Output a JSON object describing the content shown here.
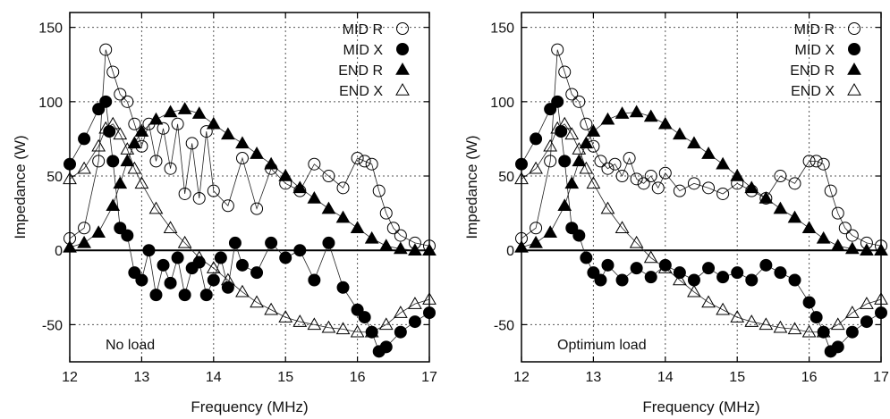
{
  "chart_data": [
    {
      "type": "scatter",
      "annotation": "No load",
      "xlabel": "Frequency (MHz)",
      "ylabel": "Impedance (W)",
      "xlim": [
        12,
        17
      ],
      "ylim": [
        -75,
        160
      ],
      "xticks": [
        12,
        13,
        14,
        15,
        16,
        17
      ],
      "yticks": [
        -50,
        0,
        50,
        100,
        150
      ],
      "grid": "dotted",
      "legend_position": "top-right",
      "series": [
        {
          "name": "MID R",
          "marker": "open-circle",
          "x": [
            12.0,
            12.2,
            12.4,
            12.5,
            12.6,
            12.7,
            12.8,
            12.9,
            13.0,
            13.1,
            13.2,
            13.3,
            13.4,
            13.5,
            13.6,
            13.7,
            13.8,
            13.9,
            14.0,
            14.2,
            14.4,
            14.6,
            14.8,
            15.0,
            15.2,
            15.4,
            15.6,
            15.8,
            16.0,
            16.1,
            16.2,
            16.3,
            16.4,
            16.5,
            16.6,
            16.8,
            17.0
          ],
          "y": [
            8,
            15,
            60,
            135,
            120,
            105,
            100,
            85,
            70,
            85,
            60,
            82,
            55,
            85,
            38,
            72,
            35,
            80,
            40,
            30,
            62,
            28,
            55,
            45,
            40,
            58,
            50,
            42,
            62,
            60,
            58,
            40,
            25,
            15,
            10,
            5,
            3
          ]
        },
        {
          "name": "MID X",
          "marker": "filled-circle",
          "x": [
            12.0,
            12.2,
            12.4,
            12.5,
            12.55,
            12.6,
            12.7,
            12.8,
            12.9,
            13.0,
            13.1,
            13.2,
            13.3,
            13.4,
            13.5,
            13.6,
            13.7,
            13.8,
            13.9,
            14.0,
            14.1,
            14.2,
            14.3,
            14.4,
            14.6,
            14.8,
            15.0,
            15.2,
            15.4,
            15.6,
            15.8,
            16.0,
            16.1,
            16.2,
            16.3,
            16.4,
            16.6,
            16.8,
            17.0
          ],
          "y": [
            58,
            75,
            95,
            100,
            80,
            60,
            15,
            10,
            -15,
            -20,
            0,
            -30,
            -10,
            -22,
            -5,
            -30,
            -12,
            -8,
            -30,
            -20,
            -5,
            -25,
            5,
            -10,
            -15,
            5,
            -5,
            0,
            -20,
            5,
            -25,
            -40,
            -45,
            -55,
            -68,
            -65,
            -55,
            -48,
            -42
          ]
        },
        {
          "name": "END R",
          "marker": "filled-triangle",
          "x": [
            12.0,
            12.2,
            12.4,
            12.6,
            12.7,
            12.8,
            12.9,
            13.0,
            13.2,
            13.4,
            13.6,
            13.8,
            14.0,
            14.2,
            14.4,
            14.6,
            14.8,
            15.0,
            15.2,
            15.4,
            15.6,
            15.8,
            16.0,
            16.2,
            16.4,
            16.6,
            16.8,
            17.0
          ],
          "y": [
            2,
            5,
            12,
            30,
            45,
            60,
            72,
            80,
            88,
            93,
            95,
            92,
            85,
            78,
            72,
            65,
            58,
            50,
            42,
            35,
            28,
            22,
            15,
            8,
            3,
            1,
            0,
            0
          ]
        },
        {
          "name": "END X",
          "marker": "open-triangle",
          "x": [
            12.0,
            12.2,
            12.4,
            12.5,
            12.6,
            12.7,
            12.8,
            12.9,
            13.0,
            13.2,
            13.4,
            13.6,
            13.8,
            14.0,
            14.2,
            14.4,
            14.6,
            14.8,
            15.0,
            15.2,
            15.4,
            15.6,
            15.8,
            16.0,
            16.2,
            16.4,
            16.6,
            16.8,
            17.0
          ],
          "y": [
            48,
            55,
            70,
            82,
            85,
            78,
            68,
            55,
            45,
            28,
            15,
            5,
            -5,
            -12,
            -20,
            -28,
            -35,
            -40,
            -45,
            -48,
            -50,
            -52,
            -53,
            -55,
            -55,
            -50,
            -42,
            -36,
            -33
          ]
        }
      ]
    },
    {
      "type": "scatter",
      "annotation": "Optimum load",
      "xlabel": "Frequency (MHz)",
      "ylabel": "Impedance (W)",
      "xlim": [
        12,
        17
      ],
      "ylim": [
        -75,
        160
      ],
      "xticks": [
        12,
        13,
        14,
        15,
        16,
        17
      ],
      "yticks": [
        -50,
        0,
        50,
        100,
        150
      ],
      "grid": "dotted",
      "legend_position": "top-right",
      "series": [
        {
          "name": "MID R",
          "marker": "open-circle",
          "x": [
            12.0,
            12.2,
            12.4,
            12.5,
            12.6,
            12.7,
            12.8,
            12.9,
            13.0,
            13.1,
            13.2,
            13.3,
            13.4,
            13.5,
            13.6,
            13.7,
            13.8,
            13.9,
            14.0,
            14.2,
            14.4,
            14.6,
            14.8,
            15.0,
            15.2,
            15.4,
            15.6,
            15.8,
            16.0,
            16.1,
            16.2,
            16.3,
            16.4,
            16.5,
            16.6,
            16.8,
            17.0
          ],
          "y": [
            8,
            15,
            60,
            135,
            120,
            105,
            100,
            85,
            70,
            60,
            55,
            58,
            50,
            62,
            48,
            45,
            50,
            42,
            52,
            40,
            45,
            42,
            38,
            45,
            40,
            35,
            50,
            45,
            60,
            60,
            58,
            40,
            25,
            15,
            10,
            5,
            3
          ]
        },
        {
          "name": "MID X",
          "marker": "filled-circle",
          "x": [
            12.0,
            12.2,
            12.4,
            12.5,
            12.55,
            12.6,
            12.7,
            12.8,
            12.9,
            13.0,
            13.1,
            13.2,
            13.4,
            13.6,
            13.8,
            14.0,
            14.2,
            14.4,
            14.6,
            14.8,
            15.0,
            15.2,
            15.4,
            15.6,
            15.8,
            16.0,
            16.1,
            16.2,
            16.3,
            16.4,
            16.6,
            16.8,
            17.0
          ],
          "y": [
            58,
            75,
            95,
            100,
            80,
            60,
            15,
            10,
            -5,
            -15,
            -20,
            -10,
            -20,
            -12,
            -18,
            -10,
            -15,
            -20,
            -12,
            -18,
            -15,
            -20,
            -10,
            -15,
            -20,
            -35,
            -45,
            -55,
            -68,
            -65,
            -55,
            -48,
            -42
          ]
        },
        {
          "name": "END R",
          "marker": "filled-triangle",
          "x": [
            12.0,
            12.2,
            12.4,
            12.6,
            12.7,
            12.8,
            12.9,
            13.0,
            13.2,
            13.4,
            13.6,
            13.8,
            14.0,
            14.2,
            14.4,
            14.6,
            14.8,
            15.0,
            15.2,
            15.4,
            15.6,
            15.8,
            16.0,
            16.2,
            16.4,
            16.6,
            16.8,
            17.0
          ],
          "y": [
            2,
            5,
            12,
            30,
            45,
            60,
            72,
            80,
            88,
            92,
            93,
            90,
            85,
            78,
            72,
            65,
            58,
            50,
            42,
            35,
            28,
            22,
            15,
            8,
            3,
            1,
            0,
            0
          ]
        },
        {
          "name": "END X",
          "marker": "open-triangle",
          "x": [
            12.0,
            12.2,
            12.4,
            12.5,
            12.6,
            12.7,
            12.8,
            12.9,
            13.0,
            13.2,
            13.4,
            13.6,
            13.8,
            14.0,
            14.2,
            14.4,
            14.6,
            14.8,
            15.0,
            15.2,
            15.4,
            15.6,
            15.8,
            16.0,
            16.2,
            16.4,
            16.6,
            16.8,
            17.0
          ],
          "y": [
            48,
            55,
            70,
            82,
            85,
            78,
            68,
            55,
            45,
            28,
            15,
            5,
            -5,
            -12,
            -20,
            -28,
            -35,
            -40,
            -45,
            -48,
            -50,
            -52,
            -53,
            -55,
            -55,
            -50,
            -42,
            -36,
            -33
          ]
        }
      ]
    }
  ]
}
